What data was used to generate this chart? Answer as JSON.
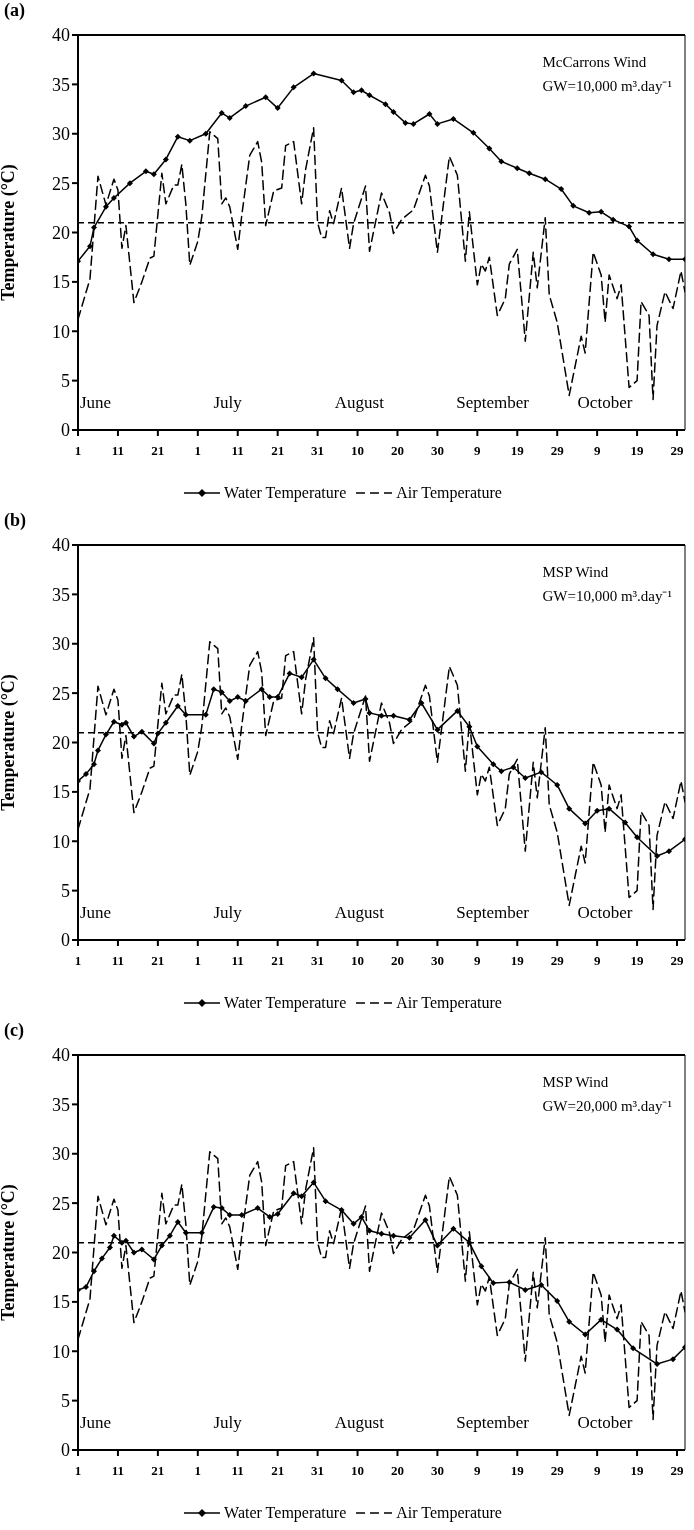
{
  "chart_data": [
    {
      "type": "line",
      "title": "(a)",
      "ylabel": "Temperature (°C)",
      "xlim": [
        "--06-01",
        "--10-31"
      ],
      "ylim": [
        0,
        40
      ],
      "yticks": [
        0,
        5,
        10,
        15,
        20,
        25,
        30,
        35,
        40
      ],
      "xticks": [
        {
          "value": "--06-01",
          "label": "1"
        },
        {
          "value": "--06-11",
          "label": "11"
        },
        {
          "value": "--06-21",
          "label": "21"
        },
        {
          "value": "--07-01",
          "label": "1"
        },
        {
          "value": "--07-11",
          "label": "11"
        },
        {
          "value": "--07-21",
          "label": "21"
        },
        {
          "value": "--07-31",
          "label": "31"
        },
        {
          "value": "--08-10",
          "label": "10"
        },
        {
          "value": "--08-20",
          "label": "20"
        },
        {
          "value": "--08-30",
          "label": "30"
        },
        {
          "value": "--09-09",
          "label": "9"
        },
        {
          "value": "--09-19",
          "label": "19"
        },
        {
          "value": "--09-29",
          "label": "29"
        },
        {
          "value": "--10-09",
          "label": "9"
        },
        {
          "value": "--10-19",
          "label": "19"
        },
        {
          "value": "--10-29",
          "label": "29"
        }
      ],
      "grid": false,
      "legend": "bottom",
      "annotations": [
        "McCarrons Wind",
        "GW=10,000 m³.day⁻¹",
        "June",
        "July",
        "August",
        "September",
        "October"
      ],
      "ref_lines": [
        {
          "axis": "y",
          "value": 21,
          "color": "#000000",
          "line_style": "dashed"
        }
      ],
      "series": [
        {
          "name": "Water Temperature",
          "type": "line",
          "color": "#000000",
          "marker": "diamond",
          "line_style": "solid",
          "x": [
            "--06-01",
            "--06-04",
            "--06-05",
            "--06-08",
            "--06-10",
            "--06-14",
            "--06-18",
            "--06-20",
            "--06-23",
            "--06-26",
            "--06-29",
            "--07-03",
            "--07-07",
            "--07-09",
            "--07-13",
            "--07-18",
            "--07-21",
            "--07-25",
            "--07-30",
            "--08-06",
            "--08-09",
            "--08-11",
            "--08-13",
            "--08-17",
            "--08-19",
            "--08-22",
            "--08-24",
            "--08-28",
            "--08-30",
            "--09-03",
            "--09-08",
            "--09-12",
            "--09-15",
            "--09-19",
            "--09-22",
            "--09-26",
            "--09-30",
            "--10-03",
            "--10-07",
            "--10-10",
            "--10-13",
            "--10-17",
            "--10-19",
            "--10-23",
            "--10-27",
            "--10-31"
          ],
          "values": [
            17.1,
            18.6,
            20.5,
            22.6,
            23.5,
            25,
            26.2,
            25.9,
            27.4,
            29.7,
            29.3,
            30,
            32.1,
            31.6,
            32.8,
            33.7,
            32.6,
            34.7,
            36.1,
            35.4,
            34.2,
            34.4,
            33.9,
            33,
            32.2,
            31.1,
            31,
            32,
            31,
            31.5,
            30.1,
            28.5,
            27.2,
            26.5,
            26,
            25.4,
            24.4,
            22.7,
            22,
            22.1,
            21.3,
            20.6,
            19.2,
            17.8,
            17.3,
            17.3
          ]
        },
        {
          "name": "Air Temperature",
          "type": "line",
          "color": "#000000",
          "marker": "none",
          "line_style": "dashed",
          "x": [
            "--06-01",
            "--06-04",
            "--06-06",
            "--06-08",
            "--06-10",
            "--06-11",
            "--06-12",
            "--06-13",
            "--06-15",
            "--06-17",
            "--06-19",
            "--06-20",
            "--06-22",
            "--06-23",
            "--06-25",
            "--06-26",
            "--06-27",
            "--06-28",
            "--06-29",
            "--07-01",
            "--07-02",
            "--07-04",
            "--07-06",
            "--07-07",
            "--07-08",
            "--07-09",
            "--07-11",
            "--07-12",
            "--07-14",
            "--07-16",
            "--07-17",
            "--07-18",
            "--07-20",
            "--07-22",
            "--07-23",
            "--07-25",
            "--07-27",
            "--07-28",
            "--07-30",
            "--07-31",
            "--08-01",
            "--08-02",
            "--08-03",
            "--08-04",
            "--08-06",
            "--08-08",
            "--08-09",
            "--08-12",
            "--08-13",
            "--08-16",
            "--08-18",
            "--08-19",
            "--08-21",
            "--08-24",
            "--08-27",
            "--08-28",
            "--08-30",
            "--09-02",
            "--09-04",
            "--09-06",
            "--09-07",
            "--09-09",
            "--09-10",
            "--09-11",
            "--09-12",
            "--09-14",
            "--09-16",
            "--09-17",
            "--09-19",
            "--09-21",
            "--09-23",
            "--09-24",
            "--09-26",
            "--09-27",
            "--09-29",
            "--10-02",
            "--10-05",
            "--10-06",
            "--10-08",
            "--10-10",
            "--10-11",
            "--10-12",
            "--10-14",
            "--10-15",
            "--10-17",
            "--10-19",
            "--10-20",
            "--10-22",
            "--10-23",
            "--10-24",
            "--10-26",
            "--10-28",
            "--10-30",
            "--10-31"
          ],
          "values": [
            11.2,
            15.3,
            25.7,
            22.8,
            25.4,
            24.3,
            18.4,
            20.7,
            12.9,
            15,
            17.4,
            17.6,
            26,
            22.9,
            24.8,
            24.8,
            26.9,
            22.9,
            16.7,
            19.1,
            21.6,
            30.2,
            29.5,
            22.9,
            23.5,
            22.6,
            18.3,
            21.7,
            27.8,
            29.2,
            27.1,
            20.7,
            24.2,
            24.5,
            28.8,
            29.2,
            22.9,
            26.4,
            30.6,
            21,
            19.5,
            19.5,
            22.2,
            20.9,
            24.5,
            18.4,
            20.9,
            24.7,
            18.1,
            24,
            22,
            19.9,
            21.3,
            22.3,
            25.8,
            24.7,
            18,
            27.7,
            25.8,
            17.1,
            22.1,
            14.7,
            16.8,
            16.1,
            17.5,
            11.6,
            13.3,
            16.8,
            18.3,
            9,
            18,
            14.4,
            21.5,
            13.7,
            10.9,
            3.5,
            9.5,
            7.8,
            18,
            15.7,
            10.9,
            15.7,
            13.3,
            14.7,
            4.3,
            5,
            13,
            11.6,
            3.1,
            10.6,
            14,
            12.3,
            16.1,
            14
          ]
        }
      ]
    },
    {
      "type": "line",
      "title": "(b)",
      "ylabel": "Temperature (°C)",
      "xlim": [
        "--06-01",
        "--10-31"
      ],
      "ylim": [
        0,
        40
      ],
      "yticks": [
        0,
        5,
        10,
        15,
        20,
        25,
        30,
        35,
        40
      ],
      "xticks": [
        {
          "value": "--06-01",
          "label": "1"
        },
        {
          "value": "--06-11",
          "label": "11"
        },
        {
          "value": "--06-21",
          "label": "21"
        },
        {
          "value": "--07-01",
          "label": "1"
        },
        {
          "value": "--07-11",
          "label": "11"
        },
        {
          "value": "--07-21",
          "label": "21"
        },
        {
          "value": "--07-31",
          "label": "31"
        },
        {
          "value": "--08-10",
          "label": "10"
        },
        {
          "value": "--08-20",
          "label": "20"
        },
        {
          "value": "--08-30",
          "label": "30"
        },
        {
          "value": "--09-09",
          "label": "9"
        },
        {
          "value": "--09-19",
          "label": "19"
        },
        {
          "value": "--09-29",
          "label": "29"
        },
        {
          "value": "--10-09",
          "label": "9"
        },
        {
          "value": "--10-19",
          "label": "19"
        },
        {
          "value": "--10-29",
          "label": "29"
        }
      ],
      "grid": false,
      "legend": "bottom",
      "annotations": [
        "MSP Wind",
        "GW=10,000 m³.day⁻¹",
        "June",
        "July",
        "August",
        "September",
        "October"
      ],
      "ref_lines": [
        {
          "axis": "y",
          "value": 21,
          "color": "#000000",
          "line_style": "dashed"
        }
      ],
      "series": [
        {
          "name": "Water Temperature",
          "type": "line",
          "color": "#000000",
          "marker": "diamond",
          "line_style": "solid",
          "x": [
            "--06-01",
            "--06-03",
            "--06-05",
            "--06-06",
            "--06-08",
            "--06-10",
            "--06-12",
            "--06-13",
            "--06-15",
            "--06-17",
            "--06-20",
            "--06-21",
            "--06-23",
            "--06-26",
            "--06-28",
            "--07-03",
            "--07-05",
            "--07-07",
            "--07-09",
            "--07-11",
            "--07-13",
            "--07-17",
            "--07-19",
            "--07-21",
            "--07-24",
            "--07-27",
            "--07-30",
            "--08-02",
            "--08-05",
            "--08-09",
            "--08-12",
            "--08-13",
            "--08-16",
            "--08-19",
            "--08-23",
            "--08-26",
            "--08-30",
            "--09-04",
            "--09-07",
            "--09-09",
            "--09-13",
            "--09-15",
            "--09-18",
            "--09-21",
            "--09-25",
            "--09-29",
            "--10-02",
            "--10-06",
            "--10-09",
            "--10-12",
            "--10-16",
            "--10-19",
            "--10-24",
            "--10-27",
            "--10-31"
          ],
          "values": [
            16.1,
            16.8,
            17.8,
            19.2,
            20.8,
            22.1,
            21.8,
            22,
            20.6,
            21.1,
            19.9,
            20.9,
            22,
            23.7,
            22.8,
            22.8,
            25.4,
            25.1,
            24.2,
            24.6,
            24.2,
            25.4,
            24.6,
            24.6,
            27,
            26.6,
            28.4,
            26.5,
            25.4,
            24,
            24.4,
            23,
            22.7,
            22.7,
            22.3,
            24,
            21.3,
            23.2,
            21.6,
            19.6,
            17.8,
            17.1,
            17.5,
            16.4,
            17,
            15.7,
            13.3,
            11.8,
            13.1,
            13.3,
            11.9,
            10.4,
            8.5,
            9,
            10.2
          ]
        },
        {
          "name": "Air Temperature",
          "type": "line",
          "color": "#000000",
          "marker": "none",
          "line_style": "dashed",
          "x": [
            "--06-01",
            "--06-04",
            "--06-06",
            "--06-08",
            "--06-10",
            "--06-11",
            "--06-12",
            "--06-13",
            "--06-15",
            "--06-17",
            "--06-19",
            "--06-20",
            "--06-22",
            "--06-23",
            "--06-25",
            "--06-26",
            "--06-27",
            "--06-28",
            "--06-29",
            "--07-01",
            "--07-02",
            "--07-04",
            "--07-06",
            "--07-07",
            "--07-08",
            "--07-09",
            "--07-11",
            "--07-12",
            "--07-14",
            "--07-16",
            "--07-17",
            "--07-18",
            "--07-20",
            "--07-22",
            "--07-23",
            "--07-25",
            "--07-27",
            "--07-28",
            "--07-30",
            "--07-31",
            "--08-01",
            "--08-02",
            "--08-03",
            "--08-04",
            "--08-06",
            "--08-08",
            "--08-09",
            "--08-12",
            "--08-13",
            "--08-16",
            "--08-18",
            "--08-19",
            "--08-21",
            "--08-24",
            "--08-27",
            "--08-28",
            "--08-30",
            "--09-02",
            "--09-04",
            "--09-06",
            "--09-07",
            "--09-09",
            "--09-10",
            "--09-11",
            "--09-12",
            "--09-14",
            "--09-16",
            "--09-17",
            "--09-19",
            "--09-21",
            "--09-23",
            "--09-24",
            "--09-26",
            "--09-27",
            "--09-29",
            "--10-02",
            "--10-05",
            "--10-06",
            "--10-08",
            "--10-10",
            "--10-11",
            "--10-12",
            "--10-14",
            "--10-15",
            "--10-17",
            "--10-19",
            "--10-20",
            "--10-22",
            "--10-23",
            "--10-24",
            "--10-26",
            "--10-28",
            "--10-30",
            "--10-31"
          ],
          "values": [
            11.2,
            15.3,
            25.7,
            22.8,
            25.4,
            24.3,
            18.4,
            20.7,
            12.9,
            15,
            17.4,
            17.6,
            26,
            22.9,
            24.8,
            24.8,
            26.9,
            22.9,
            16.7,
            19.1,
            21.6,
            30.2,
            29.5,
            22.9,
            23.5,
            22.6,
            18.3,
            21.7,
            27.8,
            29.2,
            27.1,
            20.7,
            24.2,
            24.5,
            28.8,
            29.2,
            22.9,
            26.4,
            30.6,
            21,
            19.5,
            19.5,
            22.2,
            20.9,
            24.5,
            18.4,
            20.9,
            24.7,
            18.1,
            24,
            22,
            19.9,
            21.3,
            22.3,
            25.8,
            24.7,
            18,
            27.7,
            25.8,
            17.1,
            22.1,
            14.7,
            16.8,
            16.1,
            17.5,
            11.6,
            13.3,
            16.8,
            18.3,
            9,
            18,
            14.4,
            21.5,
            13.7,
            10.9,
            3.5,
            9.5,
            7.8,
            18,
            15.7,
            10.9,
            15.7,
            13.3,
            14.7,
            4.3,
            5,
            13,
            11.6,
            3.1,
            10.6,
            14,
            12.3,
            16.1,
            14
          ]
        }
      ]
    },
    {
      "type": "line",
      "title": "(c)",
      "ylabel": "Temperature (°C)",
      "xlim": [
        "--06-01",
        "--10-31"
      ],
      "ylim": [
        0,
        40
      ],
      "yticks": [
        0,
        5,
        10,
        15,
        20,
        25,
        30,
        35,
        40
      ],
      "xticks": [
        {
          "value": "--06-01",
          "label": "1"
        },
        {
          "value": "--06-11",
          "label": "11"
        },
        {
          "value": "--06-21",
          "label": "21"
        },
        {
          "value": "--07-01",
          "label": "1"
        },
        {
          "value": "--07-11",
          "label": "11"
        },
        {
          "value": "--07-21",
          "label": "21"
        },
        {
          "value": "--07-31",
          "label": "31"
        },
        {
          "value": "--08-10",
          "label": "10"
        },
        {
          "value": "--08-20",
          "label": "20"
        },
        {
          "value": "--08-30",
          "label": "30"
        },
        {
          "value": "--09-09",
          "label": "9"
        },
        {
          "value": "--09-19",
          "label": "19"
        },
        {
          "value": "--09-29",
          "label": "29"
        },
        {
          "value": "--10-09",
          "label": "9"
        },
        {
          "value": "--10-19",
          "label": "19"
        },
        {
          "value": "--10-29",
          "label": "29"
        }
      ],
      "grid": false,
      "legend": "bottom",
      "annotations": [
        "MSP Wind",
        "GW=20,000 m³.day⁻¹",
        "June",
        "July",
        "August",
        "September",
        "October"
      ],
      "ref_lines": [
        {
          "axis": "y",
          "value": 21,
          "color": "#000000",
          "line_style": "dashed"
        }
      ],
      "series": [
        {
          "name": "Water Temperature",
          "type": "line",
          "color": "#000000",
          "marker": "diamond",
          "line_style": "solid",
          "x": [
            "--06-01",
            "--06-03",
            "--06-05",
            "--06-07",
            "--06-09",
            "--06-10",
            "--06-12",
            "--06-13",
            "--06-15",
            "--06-17",
            "--06-20",
            "--06-22",
            "--06-24",
            "--06-26",
            "--06-28",
            "--07-02",
            "--07-05",
            "--07-07",
            "--07-09",
            "--07-12",
            "--07-16",
            "--07-19",
            "--07-21",
            "--07-25",
            "--07-27",
            "--07-30",
            "--08-02",
            "--08-06",
            "--08-09",
            "--08-11",
            "--08-13",
            "--08-16",
            "--08-19",
            "--08-23",
            "--08-27",
            "--08-30",
            "--09-03",
            "--09-07",
            "--09-10",
            "--09-13",
            "--09-17",
            "--09-21",
            "--09-25",
            "--09-29",
            "--10-02",
            "--10-06",
            "--10-10",
            "--10-14",
            "--10-18",
            "--10-24",
            "--10-28",
            "--10-31"
          ],
          "values": [
            16.2,
            16.5,
            18.1,
            19.4,
            20.5,
            21.7,
            21,
            21.2,
            20,
            20.3,
            19.3,
            20.7,
            21.7,
            23.1,
            22,
            22,
            24.6,
            24.5,
            23.8,
            23.8,
            24.5,
            23.6,
            23.9,
            26,
            25.7,
            27.1,
            25.2,
            24.3,
            22.9,
            23.6,
            22.2,
            21.9,
            21.7,
            21.5,
            23.3,
            20.7,
            22.4,
            21,
            18.6,
            16.9,
            17,
            16.2,
            16.7,
            15.1,
            13,
            11.7,
            13.2,
            12.2,
            10.3,
            8.7,
            9.2,
            10.4
          ]
        },
        {
          "name": "Air Temperature",
          "type": "line",
          "color": "#000000",
          "marker": "none",
          "line_style": "dashed",
          "x": [
            "--06-01",
            "--06-04",
            "--06-06",
            "--06-08",
            "--06-10",
            "--06-11",
            "--06-12",
            "--06-13",
            "--06-15",
            "--06-17",
            "--06-19",
            "--06-20",
            "--06-22",
            "--06-23",
            "--06-25",
            "--06-26",
            "--06-27",
            "--06-28",
            "--06-29",
            "--07-01",
            "--07-02",
            "--07-04",
            "--07-06",
            "--07-07",
            "--07-08",
            "--07-09",
            "--07-11",
            "--07-12",
            "--07-14",
            "--07-16",
            "--07-17",
            "--07-18",
            "--07-20",
            "--07-22",
            "--07-23",
            "--07-25",
            "--07-27",
            "--07-28",
            "--07-30",
            "--07-31",
            "--08-01",
            "--08-02",
            "--08-03",
            "--08-04",
            "--08-06",
            "--08-08",
            "--08-09",
            "--08-12",
            "--08-13",
            "--08-16",
            "--08-18",
            "--08-19",
            "--08-21",
            "--08-24",
            "--08-27",
            "--08-28",
            "--08-30",
            "--09-02",
            "--09-04",
            "--09-06",
            "--09-07",
            "--09-09",
            "--09-10",
            "--09-11",
            "--09-12",
            "--09-14",
            "--09-16",
            "--09-17",
            "--09-19",
            "--09-21",
            "--09-23",
            "--09-24",
            "--09-26",
            "--09-27",
            "--09-29",
            "--10-02",
            "--10-05",
            "--10-06",
            "--10-08",
            "--10-10",
            "--10-11",
            "--10-12",
            "--10-14",
            "--10-15",
            "--10-17",
            "--10-19",
            "--10-20",
            "--10-22",
            "--10-23",
            "--10-24",
            "--10-26",
            "--10-28",
            "--10-30",
            "--10-31"
          ],
          "values": [
            11.2,
            15.3,
            25.7,
            22.8,
            25.4,
            24.3,
            18.4,
            20.7,
            12.9,
            15,
            17.4,
            17.6,
            26,
            22.9,
            24.8,
            24.8,
            26.9,
            22.9,
            16.7,
            19.1,
            21.6,
            30.2,
            29.5,
            22.9,
            23.5,
            22.6,
            18.3,
            21.7,
            27.8,
            29.2,
            27.1,
            20.7,
            24.2,
            24.5,
            28.8,
            29.2,
            22.9,
            26.4,
            30.6,
            21,
            19.5,
            19.5,
            22.2,
            20.9,
            24.5,
            18.4,
            20.9,
            24.7,
            18.1,
            24,
            22,
            19.9,
            21.3,
            22.3,
            25.8,
            24.7,
            18,
            27.7,
            25.8,
            17.1,
            22.1,
            14.7,
            16.8,
            16.1,
            17.5,
            11.6,
            13.3,
            16.8,
            18.3,
            9,
            18,
            14.4,
            21.5,
            13.7,
            10.9,
            3.5,
            9.5,
            7.8,
            18,
            15.7,
            10.9,
            15.7,
            13.3,
            14.7,
            4.3,
            5,
            13,
            11.6,
            3.1,
            10.6,
            14,
            12.3,
            16.1,
            14
          ]
        }
      ]
    }
  ]
}
